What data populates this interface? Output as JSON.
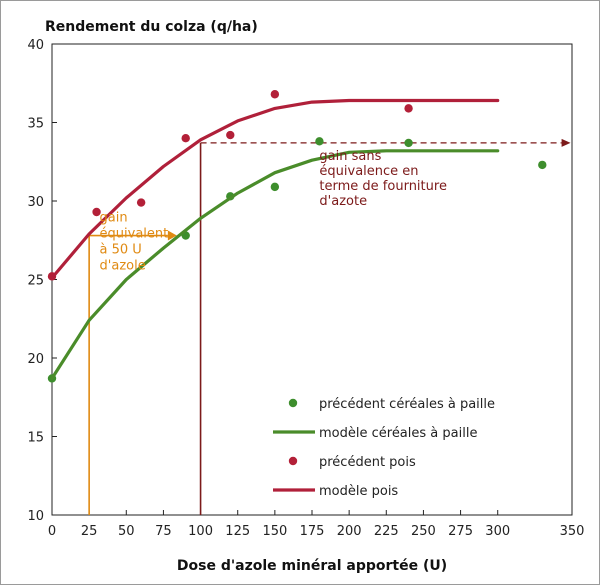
{
  "chart_data": {
    "type": "scatter",
    "ylabel": "Rendement du colza (q/ha)",
    "xlabel": "Dose d'azole minéral apportée (U)",
    "xlim": [
      0,
      350
    ],
    "ylim": [
      10,
      40
    ],
    "x_ticks": [
      0,
      25,
      50,
      75,
      100,
      125,
      150,
      175,
      200,
      225,
      250,
      275,
      300,
      350
    ],
    "y_ticks": [
      10,
      15,
      20,
      25,
      30,
      35,
      40
    ],
    "grid": false,
    "legend_position": "bottom-right",
    "series": [
      {
        "name": "précédent céréales à paille",
        "kind": "points",
        "color": "#3e8e2d",
        "points": [
          [
            0,
            18.7
          ],
          [
            90,
            27.8
          ],
          [
            120,
            30.3
          ],
          [
            150,
            30.9
          ],
          [
            180,
            33.8
          ],
          [
            240,
            33.7
          ],
          [
            330,
            32.3
          ]
        ]
      },
      {
        "name": "modèle céréales à paille",
        "kind": "line",
        "color": "#4a8c2a",
        "points": [
          [
            0,
            18.7
          ],
          [
            25,
            22.4
          ],
          [
            50,
            25.0
          ],
          [
            75,
            27.0
          ],
          [
            100,
            28.9
          ],
          [
            125,
            30.5
          ],
          [
            150,
            31.8
          ],
          [
            175,
            32.6
          ],
          [
            200,
            33.1
          ],
          [
            225,
            33.2
          ],
          [
            250,
            33.2
          ],
          [
            275,
            33.2
          ],
          [
            300,
            33.2
          ]
        ]
      },
      {
        "name": "précédent pois",
        "kind": "points",
        "color": "#b32038",
        "points": [
          [
            0,
            25.2
          ],
          [
            30,
            29.3
          ],
          [
            60,
            29.9
          ],
          [
            90,
            34.0
          ],
          [
            120,
            34.2
          ],
          [
            150,
            36.8
          ],
          [
            240,
            35.9
          ]
        ]
      },
      {
        "name": "modèle pois",
        "kind": "line",
        "color": "#b0203a",
        "points": [
          [
            0,
            25.1
          ],
          [
            25,
            27.9
          ],
          [
            50,
            30.2
          ],
          [
            75,
            32.2
          ],
          [
            100,
            33.9
          ],
          [
            125,
            35.1
          ],
          [
            150,
            35.9
          ],
          [
            175,
            36.3
          ],
          [
            200,
            36.4
          ],
          [
            250,
            36.4
          ],
          [
            300,
            36.4
          ]
        ]
      }
    ],
    "annotations": [
      {
        "id": "equivalent",
        "color": "#e08a12",
        "lines": [
          "gain",
          "équivalent",
          "à 50 U",
          "d'azole"
        ]
      },
      {
        "id": "sans_equivalence",
        "color": "#7c1a1a",
        "lines": [
          "gain sans",
          "équivalence en",
          "terme de fourniture",
          "d'azote"
        ]
      }
    ]
  }
}
